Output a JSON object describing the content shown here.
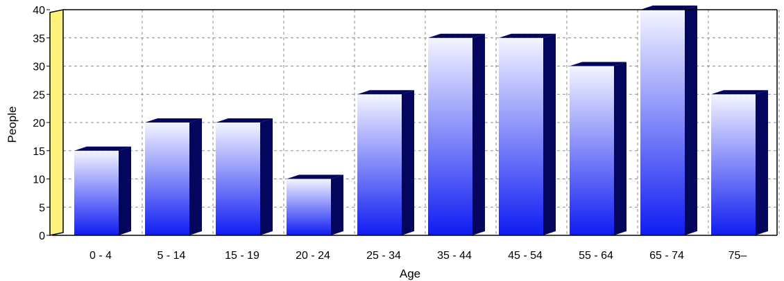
{
  "chart_data": {
    "type": "bar",
    "title": "",
    "xlabel": "Age",
    "ylabel": "People",
    "categories": [
      "0 - 4",
      "5 - 14",
      "15 - 19",
      "20 - 24",
      "25 - 34",
      "35 - 44",
      "45 - 54",
      "55 - 64",
      "65 - 74",
      "75–"
    ],
    "values": [
      15,
      20,
      20,
      10,
      25,
      35,
      35,
      30,
      40,
      25
    ],
    "ylim": [
      0,
      40
    ],
    "yticks": [
      0,
      5,
      10,
      15,
      20,
      25,
      30,
      35,
      40
    ],
    "grid": true,
    "legend": "none",
    "style": "3d-gradient-bars"
  },
  "colors": {
    "bar_top": "#f4f5ff",
    "bar_bottom": "#0f1cf2",
    "bar_side": "#04065e",
    "bar_cap": "#04065e",
    "grid": "#8a8a8a",
    "axis": "#000000",
    "wall": "#fff27a"
  }
}
